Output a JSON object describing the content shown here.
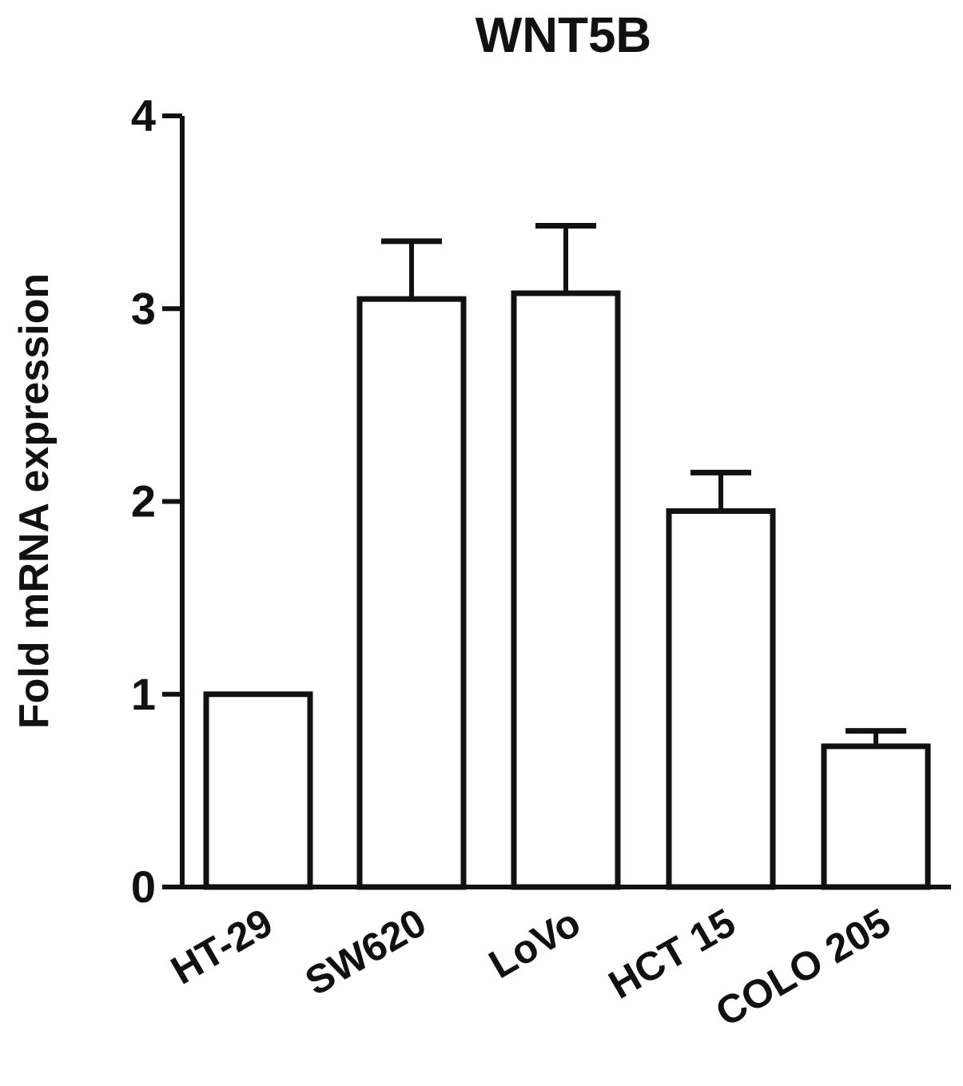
{
  "chart_data": {
    "type": "bar",
    "title": "WNT5B",
    "xlabel": "",
    "ylabel": "Fold mRNA expression",
    "categories": [
      "HT-29",
      "SW620",
      "LoVo",
      "HCT 15",
      "COLO 205"
    ],
    "values": [
      1.0,
      3.05,
      3.08,
      1.95,
      0.73
    ],
    "error": [
      null,
      0.3,
      0.35,
      0.2,
      0.08
    ],
    "ylim": [
      0,
      4
    ],
    "yticks": [
      0,
      1,
      2,
      3,
      4
    ],
    "grid": false,
    "legend": "none",
    "bar_fill": "#ffffff",
    "stroke_color": "#111111"
  }
}
